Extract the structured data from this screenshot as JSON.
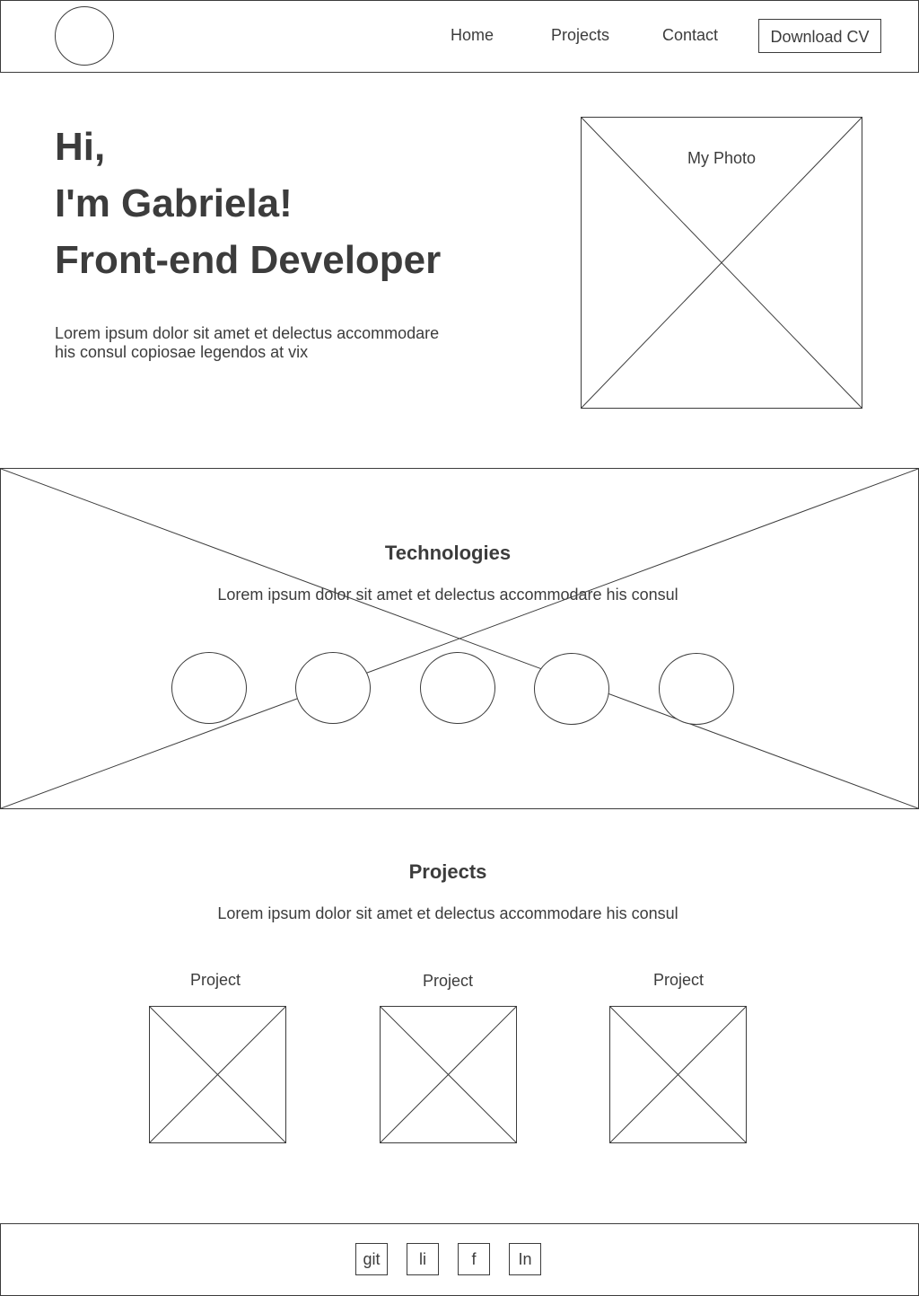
{
  "header": {
    "nav": {
      "home": "Home",
      "projects": "Projects",
      "contact": "Contact"
    },
    "cv_button": "Download CV"
  },
  "hero": {
    "line1": "Hi,",
    "line2": "I'm Gabriela!",
    "line3": "Front-end Developer",
    "description": "Lorem ipsum dolor sit amet et delectus accommodare his consul copiosae legendos at vix",
    "photo_label": "My Photo"
  },
  "technologies": {
    "title": "Technologies",
    "description": "Lorem ipsum dolor sit amet et delectus accommodare his consul"
  },
  "projects": {
    "title": "Projects",
    "description": "Lorem ipsum dolor sit amet et delectus accommodare his consul",
    "items": [
      {
        "label": "Project"
      },
      {
        "label": "Project"
      },
      {
        "label": "Project"
      }
    ]
  },
  "footer": {
    "social": [
      "git",
      "li",
      "f",
      "In"
    ]
  },
  "colors": {
    "stroke": "#3c3c3c",
    "background": "#ffffff"
  }
}
